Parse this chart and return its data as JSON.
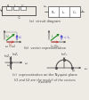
{
  "bg_color": "#eeebe5",
  "title_a": "(a)  circuit diagram",
  "title_b": "(b)  vector representation",
  "title_c": "(c)  representation on the Nyquist plane",
  "caption_line1": "V1 and V2 are the moduli of the vectors",
  "caption_line2": "resonant",
  "text_color": "#666666",
  "dark_color": "#444444",
  "line_color": "#555555",
  "label_fontsize": 2.8,
  "section_fontsize": 2.6,
  "caption_fontsize": 2.4
}
